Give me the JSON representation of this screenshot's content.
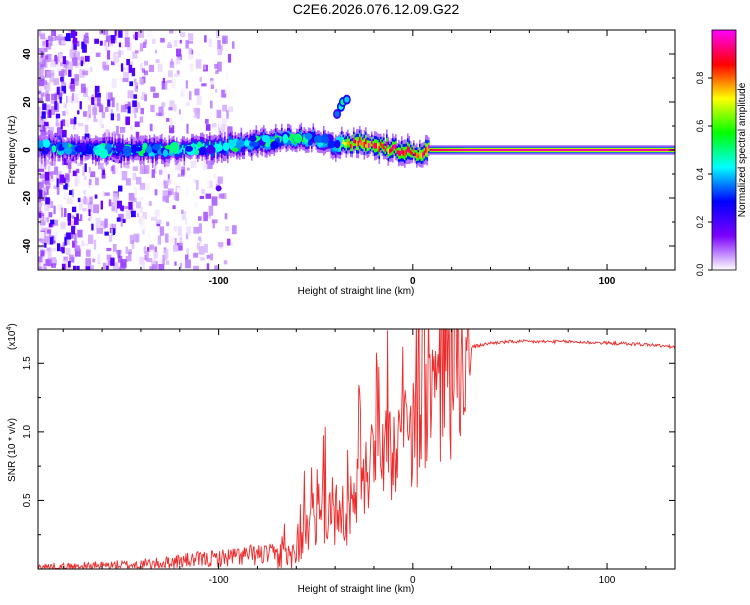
{
  "title": "C2E6.2026.076.12.09.G22",
  "colors": {
    "line": "#ee2b2b",
    "axis": "#000000",
    "background": "#ffffff"
  },
  "chart_data": [
    {
      "type": "heatmap",
      "name": "spectrogram",
      "xlabel": "Height of straight line (km)",
      "ylabel": "Frequency (Hz)",
      "xlim": [
        -193,
        135
      ],
      "ylim": [
        -50,
        50
      ],
      "xticks": [
        -100,
        0,
        100
      ],
      "yticks": [
        -40,
        -20,
        0,
        20,
        40
      ],
      "xtick_labels": [
        "-100",
        "0",
        "100"
      ],
      "ytick_labels": [
        "-40",
        "-20",
        "0",
        "20",
        "40"
      ],
      "colorbar": {
        "label": "Normalized spectral amplitude",
        "range": [
          0,
          1
        ],
        "ticks": [
          0.0,
          0.2,
          0.4,
          0.6,
          0.8
        ],
        "tick_labels": [
          "0.0",
          "0.2",
          "0.4",
          "0.6",
          "0.8"
        ],
        "colormap": [
          "#ffffff",
          "#7a00ff",
          "#0000ff",
          "#00ffff",
          "#00ff00",
          "#ffff00",
          "#ff0000",
          "#ff00ff"
        ]
      },
      "ridge": [
        {
          "x": -190,
          "freq": 1,
          "amp": 0.32
        },
        {
          "x": -170,
          "freq": 0,
          "amp": 0.38
        },
        {
          "x": -150,
          "freq": 0,
          "amp": 0.4
        },
        {
          "x": -130,
          "freq": 0,
          "amp": 0.45
        },
        {
          "x": -110,
          "freq": 1,
          "amp": 0.45
        },
        {
          "x": -90,
          "freq": 2,
          "amp": 0.5
        },
        {
          "x": -70,
          "freq": 4,
          "amp": 0.55
        },
        {
          "x": -50,
          "freq": 5,
          "amp": 0.55
        },
        {
          "x": -40,
          "freq": 2,
          "amp": 0.5
        },
        {
          "x": -33,
          "freq": 3,
          "amp": 0.85
        },
        {
          "x": -25,
          "freq": 3,
          "amp": 0.9
        },
        {
          "x": -20,
          "freq": 2,
          "amp": 0.85
        },
        {
          "x": -15,
          "freq": 1,
          "amp": 0.85
        },
        {
          "x": -8,
          "freq": 0,
          "amp": 0.85
        },
        {
          "x": -2,
          "freq": 0,
          "amp": 0.85
        },
        {
          "x": 3,
          "freq": -2,
          "amp": 0.85
        },
        {
          "x": 8,
          "freq": 0,
          "amp": 0.9
        },
        {
          "x": 30,
          "freq": 0,
          "amp": 0.95
        },
        {
          "x": 60,
          "freq": 0,
          "amp": 0.95
        },
        {
          "x": 100,
          "freq": 0,
          "amp": 0.95
        },
        {
          "x": 135,
          "freq": 0,
          "amp": 0.95
        }
      ],
      "side_feature": [
        {
          "x": -39,
          "freq": 15,
          "amp": 0.35
        },
        {
          "x": -37,
          "freq": 18,
          "amp": 0.45
        },
        {
          "x": -36,
          "freq": 20,
          "amp": 0.5
        },
        {
          "x": -34,
          "freq": 21,
          "amp": 0.4
        }
      ]
    },
    {
      "type": "line",
      "name": "snr",
      "xlabel": "Height of straight line (km)",
      "ylabel": "SNR (10 * v/v)",
      "multiplier_label": "(x10",
      "multiplier_exp": "4",
      "multiplier_close": ")",
      "xlim": [
        -193,
        135
      ],
      "ylim": [
        0,
        1.75
      ],
      "xticks": [
        -100,
        0,
        100
      ],
      "yticks": [
        0.5,
        1.0,
        1.5
      ],
      "xtick_labels": [
        "-100",
        "0",
        "100"
      ],
      "ytick_labels": [
        "0.5",
        "1.0",
        "1.5"
      ],
      "series": [
        {
          "name": "SNR",
          "x": [
            -193,
            -180,
            -160,
            -140,
            -130,
            -120,
            -110,
            -100,
            -90,
            -80,
            -70,
            -62,
            -58,
            -55,
            -50,
            -45,
            -40,
            -35,
            -30,
            -25,
            -20,
            -15,
            -10,
            -5,
            0,
            5,
            10,
            15,
            20,
            25,
            30,
            40,
            50,
            60,
            80,
            100,
            120,
            135
          ],
          "values": [
            0.02,
            0.02,
            0.03,
            0.04,
            0.05,
            0.07,
            0.08,
            0.09,
            0.11,
            0.12,
            0.12,
            0.12,
            0.2,
            0.3,
            0.35,
            0.45,
            0.4,
            0.3,
            0.55,
            0.75,
            0.85,
            0.9,
            0.95,
            0.95,
            1.05,
            1.2,
            1.35,
            1.4,
            1.45,
            1.55,
            1.62,
            1.65,
            1.66,
            1.66,
            1.66,
            1.65,
            1.64,
            1.62
          ]
        }
      ]
    }
  ]
}
